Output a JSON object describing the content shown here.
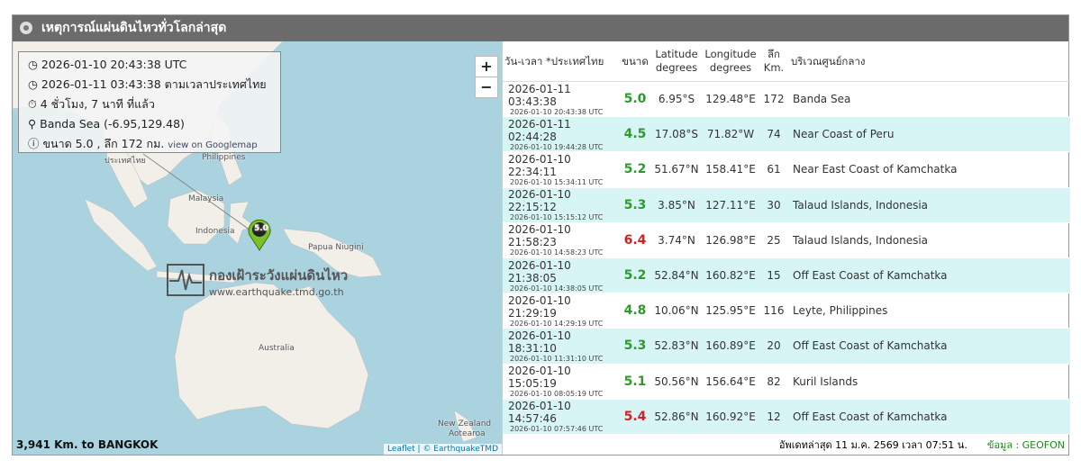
{
  "header": {
    "title": "เหตุการณ์แผ่นดินไหวทั่วโลกล่าสุด"
  },
  "map": {
    "info": {
      "utc": "2026-01-10 20:43:38 UTC",
      "thai_time": "2026-01-11 03:43:38 ตามเวลาประเทศไทย",
      "ago": "4 ชั่วโมง, 7 นาที ที่แล้ว",
      "location": "Banda Sea (-6.95,129.48)",
      "magnitude_depth": "ขนาด 5.0 , ลึก 172 กม.",
      "googlemap": "view on Googlemap"
    },
    "zoom_in": "+",
    "zoom_out": "−",
    "labels": [
      "ประเทศไทย",
      "Philippines",
      "Malaysia",
      "Indonesia",
      "Papua Niugini",
      "Australia",
      "New Zealand",
      "Aotearoa"
    ],
    "marker": "5.0",
    "watermark": {
      "title": "กองเฝ้าระวังแผ่นดินไหว",
      "url": "www.earthquake.tmd.go.th"
    },
    "distance": "3,941 Km. to BANGKOK",
    "attribution": "Leaflet | © EarthquakeTMD"
  },
  "table": {
    "columns": [
      "วัน-เวลา *ประเทศไทย",
      "ขนาด",
      "Latitude degrees",
      "Longitude degrees",
      "ลึก Km.",
      "บริเวณศูนย์กลาง"
    ],
    "rows": [
      {
        "time_th": "2026-01-11 03:43:38",
        "time_utc": "2026-01-10 20:43:38 UTC",
        "mag": "5.0",
        "color": "#2e9a2e",
        "lat": "6.95°S",
        "lon": "129.48°E",
        "depth": "172",
        "region": "Banda Sea"
      },
      {
        "time_th": "2026-01-11 02:44:28",
        "time_utc": "2026-01-10 19:44:28 UTC",
        "mag": "4.5",
        "color": "#2e9a2e",
        "lat": "17.08°S",
        "lon": "71.82°W",
        "depth": "74",
        "region": "Near Coast of Peru"
      },
      {
        "time_th": "2026-01-10 22:34:11",
        "time_utc": "2026-01-10 15:34:11 UTC",
        "mag": "5.2",
        "color": "#2e9a2e",
        "lat": "51.67°N",
        "lon": "158.41°E",
        "depth": "61",
        "region": "Near East Coast of Kamchatka"
      },
      {
        "time_th": "2026-01-10 22:15:12",
        "time_utc": "2026-01-10 15:15:12 UTC",
        "mag": "5.3",
        "color": "#2e9a2e",
        "lat": "3.85°N",
        "lon": "127.11°E",
        "depth": "30",
        "region": "Talaud Islands, Indonesia"
      },
      {
        "time_th": "2026-01-10 21:58:23",
        "time_utc": "2026-01-10 14:58:23 UTC",
        "mag": "6.4",
        "color": "#d42020",
        "lat": "3.74°N",
        "lon": "126.98°E",
        "depth": "25",
        "region": "Talaud Islands, Indonesia"
      },
      {
        "time_th": "2026-01-10 21:38:05",
        "time_utc": "2026-01-10 14:38:05 UTC",
        "mag": "5.2",
        "color": "#2e9a2e",
        "lat": "52.84°N",
        "lon": "160.82°E",
        "depth": "15",
        "region": "Off East Coast of Kamchatka"
      },
      {
        "time_th": "2026-01-10 21:29:19",
        "time_utc": "2026-01-10 14:29:19 UTC",
        "mag": "4.8",
        "color": "#2e9a2e",
        "lat": "10.06°N",
        "lon": "125.95°E",
        "depth": "116",
        "region": "Leyte, Philippines"
      },
      {
        "time_th": "2026-01-10 18:31:10",
        "time_utc": "2026-01-10 11:31:10 UTC",
        "mag": "5.3",
        "color": "#2e9a2e",
        "lat": "52.83°N",
        "lon": "160.89°E",
        "depth": "20",
        "region": "Off East Coast of Kamchatka"
      },
      {
        "time_th": "2026-01-10 15:05:19",
        "time_utc": "2026-01-10 08:05:19 UTC",
        "mag": "5.1",
        "color": "#2e9a2e",
        "lat": "50.56°N",
        "lon": "156.64°E",
        "depth": "82",
        "region": "Kuril Islands"
      },
      {
        "time_th": "2026-01-10 14:57:46",
        "time_utc": "2026-01-10 07:57:46 UTC",
        "mag": "5.4",
        "color": "#d42020",
        "lat": "52.86°N",
        "lon": "160.92°E",
        "depth": "12",
        "region": "Off East Coast of Kamchatka"
      }
    ]
  },
  "footer": {
    "updated": "อัพเดทล่าสุด 11 ม.ค. 2569 เวลา 07:51 น.",
    "source": "ข้อมูล : GEOFON"
  }
}
